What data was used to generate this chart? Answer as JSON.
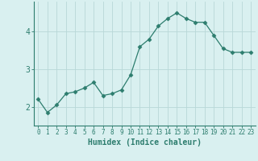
{
  "x": [
    0,
    1,
    2,
    3,
    4,
    5,
    6,
    7,
    8,
    9,
    10,
    11,
    12,
    13,
    14,
    15,
    16,
    17,
    18,
    19,
    20,
    21,
    22,
    23
  ],
  "y": [
    2.2,
    1.85,
    2.05,
    2.35,
    2.4,
    2.5,
    2.65,
    2.3,
    2.35,
    2.45,
    2.85,
    3.6,
    3.8,
    4.15,
    4.35,
    4.5,
    4.35,
    4.25,
    4.25,
    3.9,
    3.55,
    3.45,
    3.45,
    3.45
  ],
  "line_color": "#2d7d6e",
  "marker": "D",
  "marker_size": 2.5,
  "bg_color": "#d9f0f0",
  "grid_color": "#b8d8d8",
  "axis_color": "#2d7d6e",
  "xlabel": "Humidex (Indice chaleur)",
  "yticks": [
    2,
    3,
    4
  ],
  "ylim": [
    1.5,
    4.8
  ],
  "xlim": [
    -0.5,
    23.5
  ],
  "xlabel_fontsize": 7,
  "ytick_fontsize": 7,
  "xtick_fontsize": 5.5
}
